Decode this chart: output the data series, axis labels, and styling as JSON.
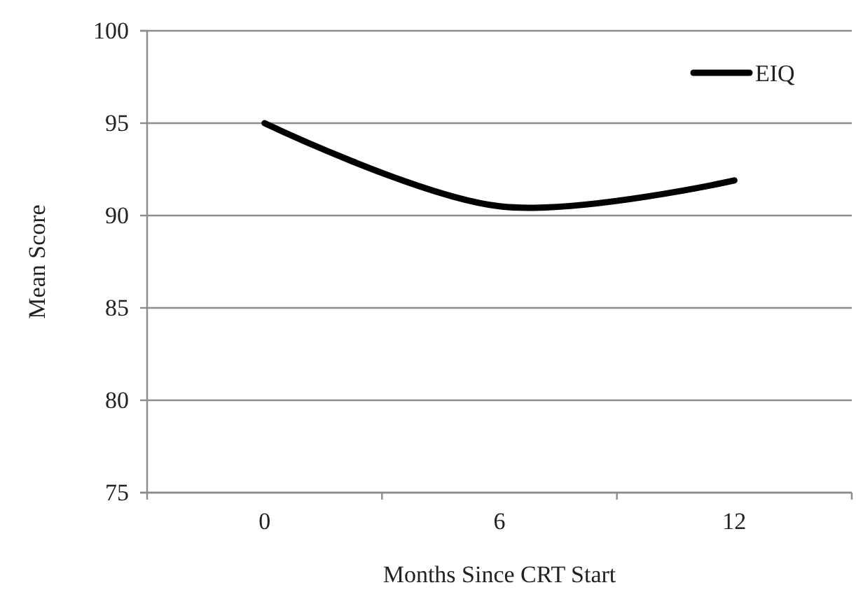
{
  "chart_data": {
    "type": "line",
    "xlabel": "Months Since CRT Start",
    "ylabel": "Mean Score",
    "categories": [
      "0",
      "6",
      "12"
    ],
    "series": [
      {
        "name": "EIQ",
        "color": "#000000",
        "values": [
          95,
          90.5,
          91.9
        ]
      }
    ],
    "ylim": [
      75,
      100
    ],
    "yticks": [
      75,
      80,
      85,
      90,
      95,
      100
    ],
    "grid": "y",
    "legend": "top right",
    "marker": "none",
    "line_style": "solid"
  }
}
